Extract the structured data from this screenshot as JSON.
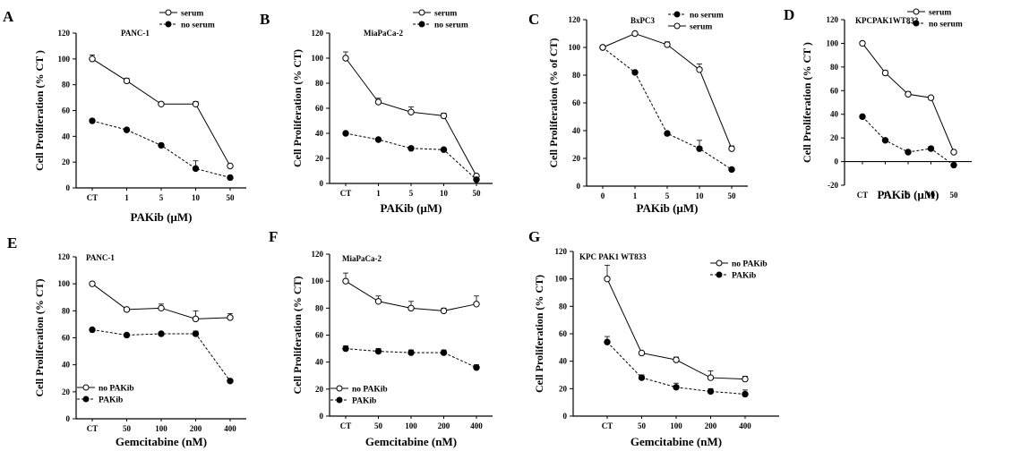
{
  "chart_data": [
    {
      "panel": "A",
      "type": "line",
      "title": "PANC-1",
      "categories": [
        "CT",
        "1",
        "5",
        "10",
        "50"
      ],
      "xlabel": "PAKib (µM)",
      "ylabel": "Cell Proliferation (% CT )",
      "ylim": [
        0,
        120
      ],
      "yticks": [
        0,
        20,
        40,
        60,
        80,
        100,
        120
      ],
      "legend_position": "top-right",
      "grid": false,
      "series": [
        {
          "name": "serum",
          "marker": "open",
          "dashed": false,
          "values": [
            100,
            83,
            65,
            65,
            17
          ],
          "errors": [
            3,
            2,
            1,
            2,
            1
          ]
        },
        {
          "name": "no serum",
          "marker": "filled",
          "dashed": true,
          "values": [
            52,
            45,
            33,
            15,
            8
          ],
          "errors": [
            1,
            1,
            1,
            6,
            1
          ]
        }
      ]
    },
    {
      "panel": "B",
      "type": "line",
      "title": "MiaPaCa-2",
      "categories": [
        "CT",
        "1",
        "5",
        "10",
        "50"
      ],
      "xlabel": "PAKib (µM)",
      "ylabel": "Cell Proliferation (% CT)",
      "ylim": [
        0,
        120
      ],
      "yticks": [
        0,
        20,
        40,
        60,
        80,
        100,
        120
      ],
      "legend_position": "top-right",
      "grid": false,
      "series": [
        {
          "name": "serum",
          "marker": "open",
          "dashed": false,
          "values": [
            100,
            65,
            57,
            54,
            6
          ],
          "errors": [
            5,
            3,
            4,
            2,
            1
          ]
        },
        {
          "name": "no serum",
          "marker": "filled",
          "dashed": true,
          "values": [
            40,
            35,
            28,
            27,
            3
          ],
          "errors": [
            1,
            1,
            1,
            1,
            1
          ]
        }
      ]
    },
    {
      "panel": "C",
      "type": "line",
      "title": "BxPC3",
      "categories": [
        "0",
        "1",
        "5",
        "10",
        "50"
      ],
      "xlabel": "PAKib (µM)",
      "ylabel": "Cell Proliferation (% of CT)",
      "ylim": [
        0,
        120
      ],
      "yticks": [
        0,
        20,
        40,
        60,
        80,
        100,
        120
      ],
      "legend_position": "top-right",
      "grid": false,
      "series": [
        {
          "name": "no serum",
          "marker": "filled",
          "dashed": true,
          "values": [
            100,
            82,
            38,
            27,
            12
          ],
          "errors": [
            1,
            1,
            1,
            6,
            1
          ]
        },
        {
          "name": "serum",
          "marker": "open",
          "dashed": false,
          "values": [
            100,
            110,
            102,
            84,
            27
          ],
          "errors": [
            1,
            1,
            2,
            4,
            2
          ]
        }
      ]
    },
    {
      "panel": "D",
      "type": "line",
      "title": "KPCPAK1WT833",
      "categories": [
        "CT",
        "1",
        "5",
        "10",
        "50"
      ],
      "xlabel": "PAKib (µM)",
      "ylabel": "Cell Proliferation (% CT )",
      "ylim": [
        -20,
        120
      ],
      "yticks": [
        -20,
        0,
        20,
        40,
        60,
        80,
        100,
        120
      ],
      "legend_position": "top-right",
      "grid": false,
      "series": [
        {
          "name": "serum",
          "marker": "open",
          "dashed": false,
          "values": [
            100,
            75,
            57,
            54,
            8
          ],
          "errors": [
            1,
            2,
            2,
            1,
            1
          ]
        },
        {
          "name": "no serum",
          "marker": "filled",
          "dashed": true,
          "values": [
            38,
            18,
            8,
            11,
            -3
          ],
          "errors": [
            1,
            1,
            1,
            1,
            1
          ]
        }
      ]
    },
    {
      "panel": "E",
      "type": "line",
      "title": "PANC-1",
      "categories": [
        "CT",
        "50",
        "100",
        "200",
        "400"
      ],
      "xlabel": "Gemcitabine (nM)",
      "ylabel": "Cell Proliferation (% CT)",
      "ylim": [
        0,
        120
      ],
      "yticks": [
        0,
        20,
        40,
        60,
        80,
        100,
        120
      ],
      "legend_position": "bottom-left",
      "grid": false,
      "series": [
        {
          "name": "no PAKib",
          "marker": "open",
          "dashed": false,
          "values": [
            100,
            81,
            82,
            74,
            75
          ],
          "errors": [
            1,
            1,
            3,
            6,
            3
          ]
        },
        {
          "name": "PAKib",
          "marker": "filled",
          "dashed": true,
          "values": [
            66,
            62,
            63,
            63,
            28
          ],
          "errors": [
            1,
            1,
            1,
            2,
            1
          ]
        }
      ]
    },
    {
      "panel": "F",
      "type": "line",
      "title": "MiaPaCa-2",
      "categories": [
        "CT",
        "50",
        "100",
        "200",
        "400"
      ],
      "xlabel": "Gemcitabine (nM)",
      "ylabel": "Cell Proliferation (% CT)",
      "ylim": [
        0,
        120
      ],
      "yticks": [
        0,
        20,
        40,
        60,
        80,
        100,
        120
      ],
      "legend_position": "bottom-left",
      "grid": false,
      "series": [
        {
          "name": "no PAKib",
          "marker": "open",
          "dashed": false,
          "values": [
            100,
            85,
            80,
            78,
            83
          ],
          "errors": [
            6,
            4,
            5,
            2,
            6
          ]
        },
        {
          "name": "PAKib",
          "marker": "filled",
          "dashed": true,
          "values": [
            50,
            48,
            47,
            47,
            36
          ],
          "errors": [
            2,
            2,
            2,
            2,
            2
          ]
        }
      ]
    },
    {
      "panel": "G",
      "type": "line",
      "title": "KPC PAK1 WT833",
      "categories": [
        "CT",
        "50",
        "100",
        "200",
        "400"
      ],
      "xlabel": "Gemcitabine (nM)",
      "ylabel": "Cell Proliferation (% CT)",
      "ylim": [
        0,
        120
      ],
      "yticks": [
        0,
        20,
        40,
        60,
        80,
        100,
        120
      ],
      "legend_position": "top-right",
      "grid": false,
      "series": [
        {
          "name": "no PAKib",
          "marker": "open",
          "dashed": false,
          "values": [
            100,
            46,
            41,
            28,
            27
          ],
          "errors": [
            10,
            1,
            2,
            5,
            2
          ]
        },
        {
          "name": "PAKib",
          "marker": "filled",
          "dashed": true,
          "values": [
            54,
            28,
            21,
            18,
            16
          ],
          "errors": [
            4,
            2,
            3,
            2,
            3
          ]
        }
      ]
    }
  ]
}
